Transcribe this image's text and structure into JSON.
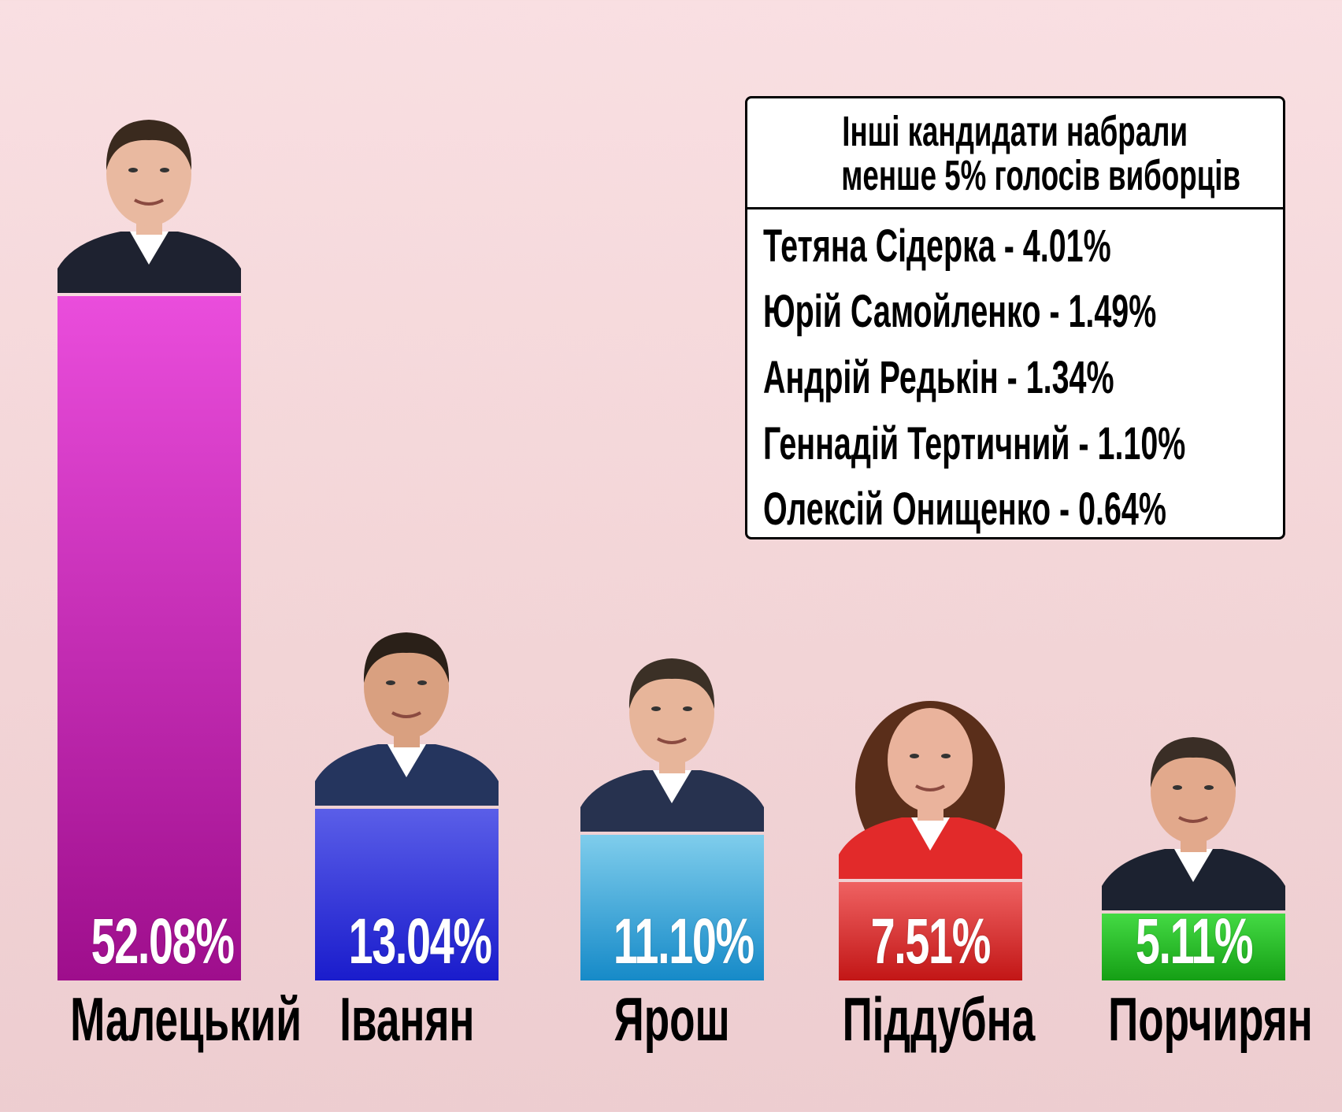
{
  "chart_data": {
    "type": "bar",
    "categories": [
      "Малецький",
      "Іванян",
      "Ярош",
      "Піддубна",
      "Порчирян"
    ],
    "values": [
      52.08,
      13.04,
      11.1,
      7.51,
      5.11
    ],
    "labels": [
      "52.08%",
      "13.04%",
      "11.10%",
      "7.51%",
      "5.11%"
    ],
    "colors": [
      [
        "#ea4ddc",
        "#9e0e8c"
      ],
      [
        "#5a5ee8",
        "#1a1ccc"
      ],
      [
        "#7fcdec",
        "#168ac8"
      ],
      [
        "#ef6262",
        "#c21616"
      ],
      [
        "#44da44",
        "#159f15"
      ]
    ],
    "ylim": [
      0,
      52.08
    ],
    "grid": false,
    "legend": "none"
  },
  "others_box": {
    "title_line1": "Інші кандидати набрали",
    "title_line2": "менше 5% голосів виборців",
    "rows": [
      "Тетяна Сідерка - 4.01%",
      "Юрій Самойленко - 1.49%",
      "Андрій Редькін - 1.34%",
      "Геннадій Тертичний - 1.10%",
      "Олексій Онищенко - 0.64%"
    ]
  }
}
